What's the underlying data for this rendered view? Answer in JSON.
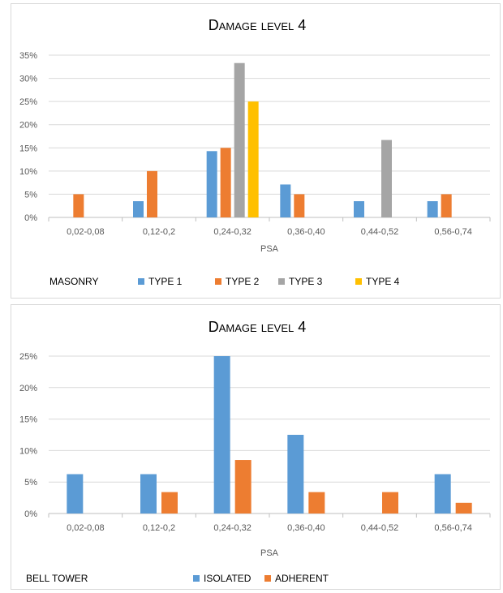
{
  "charts": [
    {
      "title": "Damage level 4",
      "group_label": "MASONRY",
      "xlabel": "PSA",
      "ylim": [
        0,
        35
      ],
      "yticks": [
        "0%",
        "5%",
        "10%",
        "15%",
        "20%",
        "25%",
        "30%",
        "35%"
      ],
      "categories": [
        "0,02-0,08",
        "0,12-0,2",
        "0,24-0,32",
        "0,36-0,40",
        "0,44-0,52",
        "0,56-0,74"
      ],
      "series": [
        {
          "name": "TYPE 1",
          "color": "#5b9bd5",
          "values": [
            0,
            3.5,
            14.3,
            7.1,
            3.5,
            3.5
          ]
        },
        {
          "name": "TYPE 2",
          "color": "#ed7d31",
          "values": [
            5,
            10,
            15,
            5,
            0,
            5
          ]
        },
        {
          "name": "TYPE 3",
          "color": "#a5a5a5",
          "values": [
            0,
            0,
            33.3,
            0,
            16.7,
            0
          ]
        },
        {
          "name": "TYPE 4",
          "color": "#ffc000",
          "values": [
            0,
            0,
            25,
            0,
            0,
            0
          ]
        }
      ]
    },
    {
      "title": "Damage level 4",
      "group_label": "BELL TOWER",
      "xlabel": "PSA",
      "ylim": [
        0,
        25
      ],
      "yticks": [
        "0%",
        "5%",
        "10%",
        "15%",
        "20%",
        "25%"
      ],
      "categories": [
        "0,02-0,08",
        "0,12-0,2",
        "0,24-0,32",
        "0,36-0,40",
        "0,44-0,52",
        "0,56-0,74"
      ],
      "series": [
        {
          "name": "ISOLATED",
          "color": "#5b9bd5",
          "values": [
            6.25,
            6.25,
            25,
            12.5,
            0,
            6.25
          ]
        },
        {
          "name": "ADHERENT",
          "color": "#ed7d31",
          "values": [
            0,
            3.4,
            8.5,
            3.4,
            3.4,
            1.7
          ]
        }
      ]
    }
  ],
  "chart_data": [
    {
      "type": "bar",
      "title": "Damage level 4",
      "xlabel": "PSA",
      "ylabel": "",
      "ylim": [
        0,
        35
      ],
      "categories": [
        "0,02-0,08",
        "0,12-0,2",
        "0,24-0,32",
        "0,36-0,40",
        "0,44-0,52",
        "0,56-0,74"
      ],
      "series": [
        {
          "name": "TYPE 1",
          "values": [
            0,
            3.5,
            14.3,
            7.1,
            3.5,
            3.5
          ]
        },
        {
          "name": "TYPE 2",
          "values": [
            5,
            10,
            15,
            5,
            0,
            5
          ]
        },
        {
          "name": "TYPE 3",
          "values": [
            0,
            0,
            33.3,
            0,
            16.7,
            0
          ]
        },
        {
          "name": "TYPE 4",
          "values": [
            0,
            0,
            25,
            0,
            0,
            0
          ]
        }
      ],
      "grid": true,
      "legend": "bottom"
    },
    {
      "type": "bar",
      "title": "Damage level 4",
      "xlabel": "PSA",
      "ylabel": "",
      "ylim": [
        0,
        25
      ],
      "categories": [
        "0,02-0,08",
        "0,12-0,2",
        "0,24-0,32",
        "0,36-0,40",
        "0,44-0,52",
        "0,56-0,74"
      ],
      "series": [
        {
          "name": "ISOLATED",
          "values": [
            6.25,
            6.25,
            25,
            12.5,
            0,
            6.25
          ]
        },
        {
          "name": "ADHERENT",
          "values": [
            0,
            3.4,
            8.5,
            3.4,
            3.4,
            1.7
          ]
        }
      ],
      "grid": true,
      "legend": "bottom"
    }
  ]
}
